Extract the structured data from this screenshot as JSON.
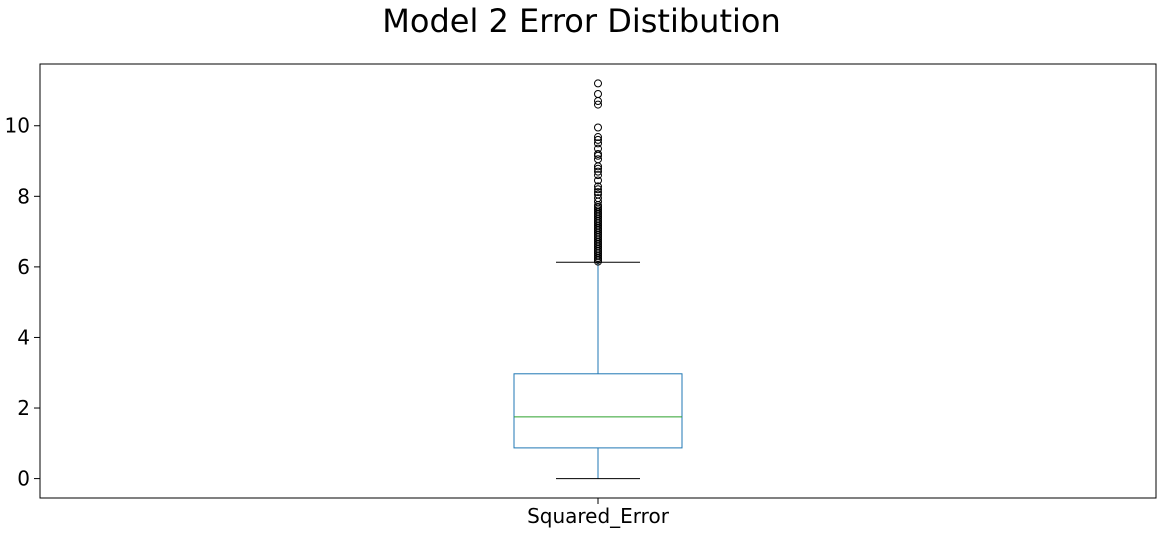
{
  "chart_data": {
    "type": "box",
    "title": "Model 2 Error Distibution",
    "xlabel": "",
    "ylabel": "",
    "categories": [
      "Squared_Error"
    ],
    "ylim": [
      -0.55,
      11.75
    ],
    "yticks": [
      0,
      2,
      4,
      6,
      8,
      10
    ],
    "grid": false,
    "legend": "none",
    "box": {
      "whisker_low": 0.0,
      "q1": 0.87,
      "median": 1.75,
      "q3": 2.97,
      "whisker_high": 6.13
    },
    "outliers": [
      6.15,
      6.2,
      6.25,
      6.3,
      6.35,
      6.4,
      6.45,
      6.5,
      6.55,
      6.6,
      6.65,
      6.7,
      6.75,
      6.8,
      6.85,
      6.9,
      6.95,
      7.0,
      7.05,
      7.1,
      7.15,
      7.2,
      7.25,
      7.3,
      7.35,
      7.4,
      7.45,
      7.5,
      7.55,
      7.6,
      7.65,
      7.7,
      7.75,
      7.85,
      7.95,
      8.05,
      8.12,
      8.2,
      8.28,
      8.45,
      8.6,
      8.7,
      8.78,
      8.85,
      9.05,
      9.15,
      9.2,
      9.35,
      9.5,
      9.6,
      9.68,
      9.95,
      10.6,
      10.7,
      10.9,
      11.2
    ],
    "colors": {
      "box": "#1f77b4",
      "median": "#2ca02c",
      "caps": "#000000",
      "outlier": "#000000"
    }
  }
}
